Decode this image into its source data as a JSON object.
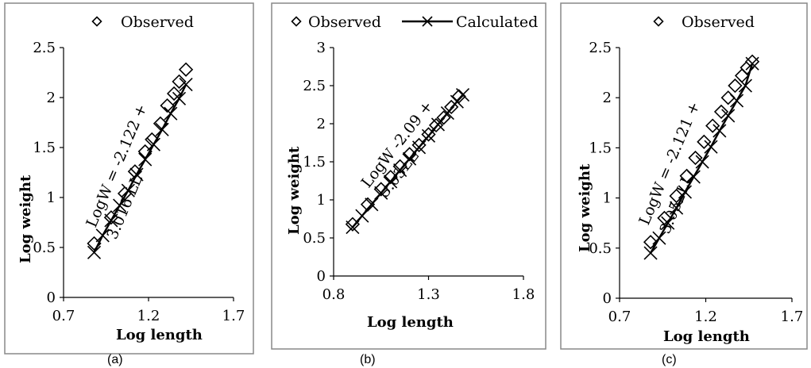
{
  "chart_data": [
    {
      "type": "scatter",
      "panel": "(a)",
      "xlabel": "Log length",
      "ylabel": "Log weight",
      "xlim": [
        0.7,
        1.7
      ],
      "ylim": [
        0,
        2.5
      ],
      "xticks": [
        "0.7",
        "1.2",
        "1.7"
      ],
      "yticks": [
        "0",
        "0.5",
        "1",
        "1.5",
        "2",
        "2.5"
      ],
      "legend": [
        "Observed"
      ],
      "legend_position": "top",
      "equation": [
        "LogW = -2.122 +",
        "3.016 LL"
      ],
      "series": [
        {
          "name": "Observed",
          "marker": "diamond",
          "x": [
            0.88,
            0.98,
            1.06,
            1.12,
            1.18,
            1.22,
            1.27,
            1.31,
            1.35,
            1.38,
            1.42
          ],
          "y": [
            0.54,
            0.8,
            1.04,
            1.26,
            1.46,
            1.58,
            1.74,
            1.92,
            2.04,
            2.16,
            2.28
          ]
        },
        {
          "name": "",
          "marker": "x-line",
          "x": [
            0.88,
            0.93,
            0.98,
            1.03,
            1.08,
            1.13,
            1.18,
            1.23,
            1.28,
            1.33,
            1.38,
            1.42
          ],
          "y": [
            0.45,
            0.62,
            0.77,
            0.92,
            1.07,
            1.23,
            1.38,
            1.53,
            1.68,
            1.84,
            1.99,
            2.13
          ]
        }
      ]
    },
    {
      "type": "scatter",
      "panel": "(b)",
      "xlabel": "Log length",
      "ylabel": "Log weight",
      "xlim": [
        0.8,
        1.8
      ],
      "ylim": [
        0,
        3
      ],
      "xticks": [
        "0.8",
        "1.3",
        "1.8"
      ],
      "yticks": [
        "0",
        "0.5",
        "1",
        "1.5",
        "2",
        "2.5",
        "3"
      ],
      "legend": [
        "Observed",
        "Calculated"
      ],
      "legend_position": "top",
      "equation": [
        "LogW -2.09 +",
        "3.03LL"
      ],
      "series": [
        {
          "name": "Observed",
          "marker": "diamond",
          "x": [
            0.9,
            0.98,
            1.05,
            1.1,
            1.15,
            1.2,
            1.25,
            1.3,
            1.34,
            1.38,
            1.42,
            1.46
          ],
          "y": [
            0.68,
            0.94,
            1.14,
            1.3,
            1.44,
            1.6,
            1.72,
            1.86,
            1.98,
            2.08,
            2.22,
            2.36
          ]
        },
        {
          "name": "Calculated",
          "marker": "x-line",
          "x": [
            0.9,
            0.95,
            1.0,
            1.05,
            1.1,
            1.15,
            1.2,
            1.25,
            1.3,
            1.35,
            1.4,
            1.45,
            1.48
          ],
          "y": [
            0.64,
            0.79,
            0.94,
            1.09,
            1.24,
            1.39,
            1.54,
            1.69,
            1.84,
            1.99,
            2.14,
            2.29,
            2.38
          ]
        }
      ]
    },
    {
      "type": "scatter",
      "panel": "(c)",
      "xlabel": "Log length",
      "ylabel": "Log weight",
      "xlim": [
        0.7,
        1.7
      ],
      "ylim": [
        0,
        2.5
      ],
      "xticks": [
        "0.7",
        "1.2",
        "1.7"
      ],
      "yticks": [
        "0",
        "0.5",
        "1",
        "1.5",
        "2",
        "2.5"
      ],
      "legend": [
        "Observed"
      ],
      "legend_position": "top",
      "equation": [
        "LogW = -2.121 +",
        "3.052LL"
      ],
      "series": [
        {
          "name": "Observed",
          "marker": "diamond",
          "x": [
            0.88,
            0.96,
            1.03,
            1.09,
            1.14,
            1.19,
            1.24,
            1.29,
            1.33,
            1.37,
            1.41,
            1.44,
            1.47
          ],
          "y": [
            0.56,
            0.8,
            1.02,
            1.22,
            1.4,
            1.56,
            1.72,
            1.86,
            2.0,
            2.12,
            2.22,
            2.3,
            2.36
          ]
        },
        {
          "name": "",
          "marker": "x-line",
          "x": [
            0.88,
            0.93,
            0.98,
            1.03,
            1.08,
            1.13,
            1.18,
            1.23,
            1.28,
            1.33,
            1.38,
            1.43,
            1.47
          ],
          "y": [
            0.45,
            0.6,
            0.75,
            0.9,
            1.06,
            1.21,
            1.36,
            1.51,
            1.67,
            1.82,
            1.97,
            2.12,
            2.34
          ]
        }
      ]
    }
  ]
}
